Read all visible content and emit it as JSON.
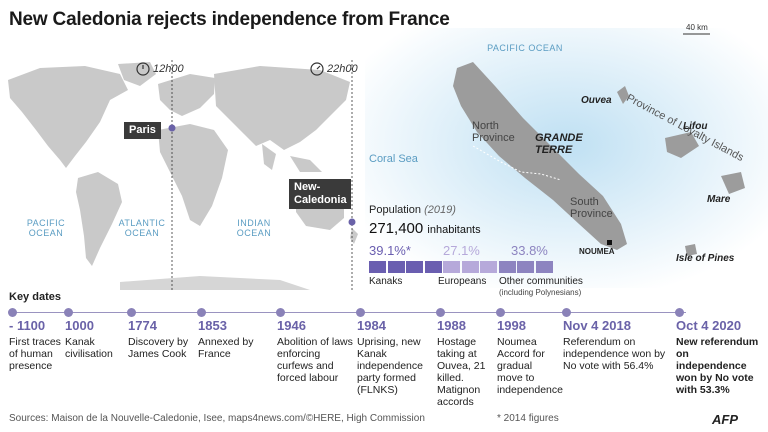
{
  "title": "New Caledonia rejects independence from France",
  "world_map": {
    "clock_paris": "12h00",
    "clock_nc": "22h00",
    "paris_label": "Paris",
    "nc_label": "New-Caledonia",
    "oceans": [
      "PACIFIC OCEAN",
      "ATLANTIC OCEAN",
      "INDIAN OCEAN"
    ]
  },
  "nc_map": {
    "pacific_ocean": "PACIFIC OCEAN",
    "coral_sea": "Coral Sea",
    "scale": "40 km",
    "grande_terre": "GRANDE TERRE",
    "north_province": "North Province",
    "south_province": "South Province",
    "loyalty_islands": "Province of Loyalty Islands",
    "ouvea": "Ouvea",
    "lifou": "Lifou",
    "mare": "Mare",
    "isle_of_pines": "Isle of Pines",
    "noumea": "NOUMEA"
  },
  "population": {
    "title": "Population",
    "year": "(2019)",
    "total": "271,400",
    "unit": "inhabitants",
    "groups": [
      {
        "pct": "39.1%*",
        "label": "Kanaks",
        "color": "#6a5eb0",
        "value": 39.1
      },
      {
        "pct": "27.1%",
        "label": "Europeans",
        "color": "#b6a9da",
        "value": 27.1
      },
      {
        "pct": "33.8%",
        "label": "Other communities",
        "sublabel": "(including Polynesians)",
        "color": "#8d84c0",
        "value": 33.8
      }
    ]
  },
  "timeline": {
    "title": "Key dates",
    "events": [
      {
        "year": "- 1100",
        "text": "First traces of human presence"
      },
      {
        "year": "1000",
        "text": "Kanak civilisation"
      },
      {
        "year": "1774",
        "text": "Discovery by James Cook"
      },
      {
        "year": "1853",
        "text": "Annexed by France"
      },
      {
        "year": "1946",
        "text": "Abolition of laws enforcing curfews and forced labour"
      },
      {
        "year": "1984",
        "text": "Uprising, new Kanak independence party formed (FLNKS)"
      },
      {
        "year": "1988",
        "text": "Hostage taking at Ouvea, 21 killed. Matignon accords"
      },
      {
        "year": "1998",
        "text": "Noumea Accord for gradual move to independence"
      },
      {
        "year": "Nov 4 2018",
        "text": "Referendum on independence won by No vote with 56.4%"
      },
      {
        "year": "Oct 4 2020",
        "text": "New referendum on independence won by No vote with 53.3%"
      }
    ]
  },
  "footer": {
    "sources": "Sources: Maison de la Nouvelle-Caledonie, Isee, maps4news.com/©HERE, High Commission",
    "footnote": "* 2014 figures",
    "brand": "AFP"
  },
  "colors": {
    "accent": "#6a62a8",
    "ocean": "#d6eaf6",
    "land": "#c8c8c8",
    "dark_tag": "#3a3a3a"
  }
}
